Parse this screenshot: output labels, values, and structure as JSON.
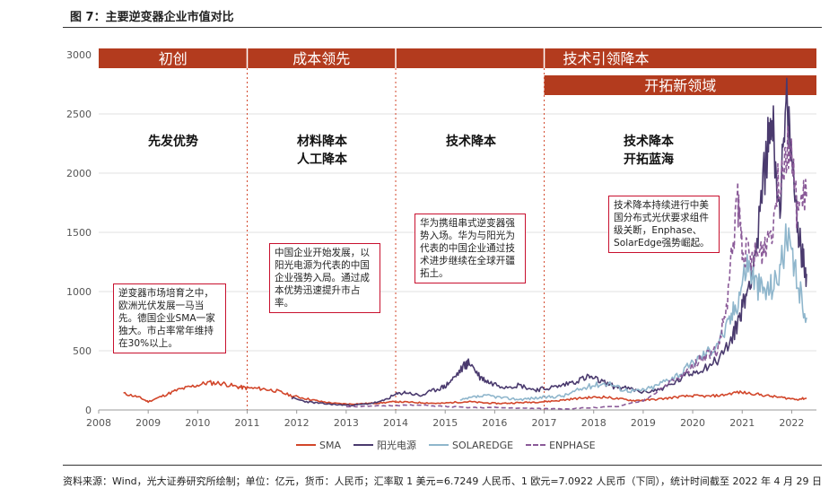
{
  "header": {
    "title": "图 7：主要逆变器企业市值对比"
  },
  "footer": {
    "source": "资料来源：Wind，光大证券研究所绘制；单位：亿元，货币：人民币；汇率取 1 美元=6.7249 人民币、1 欧元=7.0922 人民币（下同），统计时间截至 2022 年 4 月 29 日"
  },
  "phase_bars": [
    {
      "label": "初创",
      "color": "#b33b1e"
    },
    {
      "label": "成本领先",
      "color": "#b33b1e"
    },
    {
      "label": "技术引领降本",
      "color": "#b33b1e"
    },
    {
      "label": "开拓新领域",
      "color": "#b33b1e"
    }
  ],
  "phase_titles": [
    {
      "lines": [
        "先发优势"
      ]
    },
    {
      "lines": [
        "材料降本",
        "人工降本"
      ]
    },
    {
      "lines": [
        "技术降本"
      ]
    },
    {
      "lines": [
        "技术降本",
        "开拓蓝海"
      ]
    }
  ],
  "annotations": [
    {
      "text": "逆变器市场培育之中，欧洲光伏发展一马当先。德国企业SMA一家独大。市占率常年维持在30%以上。"
    },
    {
      "text": "中国企业开始发展，以阳光电源为代表的中国企业强势入局。通过成本优势迅速提升市占率。"
    },
    {
      "text": "华为携组串式逆变器强势入场。华为与阳光为代表的中国企业通过技术进步继续在全球开疆拓土。"
    },
    {
      "text": "技术降本持续进行中美国分布式光伏要求组件级关断，Enphase、SolarEdge强势崛起。"
    }
  ],
  "colors": {
    "sma": "#d2462a",
    "sungrow": "#4a3a6e",
    "solaredge": "#8fb6cc",
    "enphase": "#8a5a98",
    "divider": "#d2462a"
  },
  "chart_data": {
    "type": "line",
    "title": "主要逆变器企业市值对比",
    "xlabel": "",
    "ylabel": "",
    "xlim": [
      2008,
      2022.5
    ],
    "ylim": [
      0,
      3000
    ],
    "xticks": [
      "2008",
      "2009",
      "2010",
      "2011",
      "2012",
      "2013",
      "2014",
      "2015",
      "2016",
      "2017",
      "2018",
      "2019",
      "2020",
      "2021",
      "2022"
    ],
    "yticks": [
      "0",
      "500",
      "1000",
      "1500",
      "2000",
      "2500",
      "3000"
    ],
    "phase_dividers": [
      2011,
      2014,
      2017
    ],
    "phase_ranges": [
      [
        2008,
        2011
      ],
      [
        2011,
        2014
      ],
      [
        2014,
        2022.5
      ],
      [
        2017,
        2022.5
      ]
    ],
    "series": [
      {
        "name": "SMA",
        "color": "#d2462a",
        "dash": false,
        "x": [
          2008.5,
          2008.8,
          2009.0,
          2009.3,
          2009.6,
          2009.9,
          2010.2,
          2010.5,
          2010.8,
          2011.0,
          2011.3,
          2011.6,
          2011.9,
          2012.2,
          2012.5,
          2012.8,
          2013.1,
          2013.4,
          2013.7,
          2014.0,
          2014.3,
          2014.6,
          2014.9,
          2015.2,
          2015.5,
          2015.8,
          2016.1,
          2016.4,
          2016.7,
          2017.0,
          2017.3,
          2017.6,
          2017.9,
          2018.2,
          2018.5,
          2018.8,
          2019.1,
          2019.4,
          2019.7,
          2020.0,
          2020.3,
          2020.6,
          2020.9,
          2021.2,
          2021.5,
          2021.8,
          2022.1,
          2022.3
        ],
        "values": [
          140,
          110,
          70,
          120,
          170,
          200,
          230,
          225,
          195,
          185,
          180,
          160,
          120,
          95,
          70,
          55,
          50,
          55,
          60,
          70,
          65,
          60,
          55,
          65,
          70,
          60,
          55,
          60,
          65,
          70,
          80,
          95,
          105,
          110,
          95,
          80,
          85,
          95,
          110,
          120,
          115,
          125,
          150,
          140,
          120,
          105,
          90,
          100
        ]
      },
      {
        "name": "阳光电源",
        "color": "#4a3a6e",
        "dash": false,
        "x": [
          2011.9,
          2012.2,
          2012.5,
          2012.8,
          2013.1,
          2013.4,
          2013.7,
          2014.0,
          2014.2,
          2014.5,
          2014.8,
          2015.0,
          2015.2,
          2015.4,
          2015.5,
          2015.7,
          2015.9,
          2016.2,
          2016.5,
          2016.8,
          2017.0,
          2017.3,
          2017.6,
          2017.9,
          2018.1,
          2018.4,
          2018.7,
          2019.0,
          2019.3,
          2019.6,
          2019.9,
          2020.2,
          2020.5,
          2020.8,
          2020.95,
          2021.1,
          2021.3,
          2021.5,
          2021.6,
          2021.75,
          2021.9,
          2022.05,
          2022.2,
          2022.3
        ],
        "values": [
          100,
          70,
          55,
          45,
          40,
          50,
          70,
          130,
          150,
          120,
          170,
          200,
          280,
          380,
          400,
          280,
          230,
          200,
          210,
          170,
          180,
          200,
          240,
          280,
          250,
          200,
          180,
          150,
          170,
          220,
          300,
          350,
          420,
          600,
          800,
          1000,
          1400,
          2200,
          2500,
          1700,
          2550,
          1900,
          1300,
          1150
        ]
      },
      {
        "name": "SOLAREDGE",
        "color": "#8fb6cc",
        "dash": false,
        "x": [
          2015.3,
          2015.6,
          2015.9,
          2016.2,
          2016.5,
          2016.8,
          2017.1,
          2017.4,
          2017.7,
          2018.0,
          2018.3,
          2018.6,
          2018.9,
          2019.2,
          2019.5,
          2019.8,
          2020.1,
          2020.4,
          2020.7,
          2020.9,
          2021.1,
          2021.3,
          2021.5,
          2021.7,
          2021.9,
          2022.1,
          2022.3
        ],
        "values": [
          80,
          110,
          120,
          100,
          90,
          100,
          110,
          120,
          170,
          210,
          230,
          170,
          160,
          190,
          260,
          320,
          430,
          520,
          700,
          920,
          1250,
          1050,
          1000,
          1100,
          1450,
          1100,
          780
        ]
      },
      {
        "name": "ENPHASE",
        "color": "#8a5a98",
        "dash": true,
        "x": [
          2013.0,
          2013.5,
          2014.0,
          2014.5,
          2015.0,
          2015.5,
          2016.0,
          2016.5,
          2017.0,
          2017.5,
          2018.0,
          2018.5,
          2019.0,
          2019.5,
          2019.8,
          2020.0,
          2020.2,
          2020.5,
          2020.7,
          2020.9,
          2021.0,
          2021.2,
          2021.4,
          2021.6,
          2021.8,
          2021.95,
          2022.1,
          2022.3
        ],
        "values": [
          30,
          30,
          40,
          40,
          30,
          20,
          20,
          15,
          10,
          10,
          20,
          30,
          80,
          220,
          280,
          380,
          450,
          500,
          900,
          1800,
          1400,
          1250,
          1350,
          1550,
          2100,
          2300,
          1700,
          1800
        ]
      }
    ]
  }
}
